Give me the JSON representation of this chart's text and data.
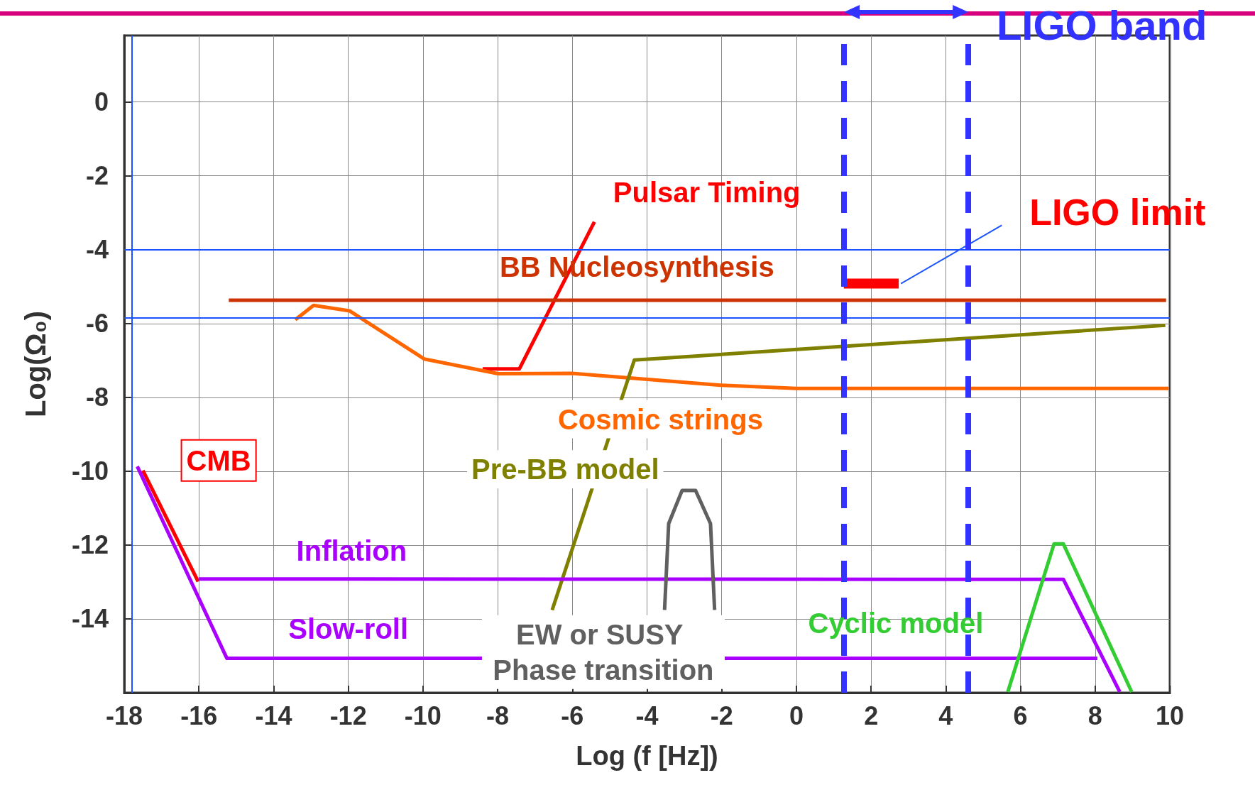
{
  "chart_data": {
    "type": "line",
    "xlabel": "Log (f [Hz])",
    "ylabel": "Log(Ω₀)",
    "xlim": [
      -18,
      10
    ],
    "xticks": [
      -18,
      -16,
      -14,
      -12,
      -10,
      -8,
      -6,
      -4,
      -2,
      0,
      2,
      4,
      6,
      8,
      10
    ],
    "ylim": [
      -16,
      1.8
    ],
    "yticks": [
      -14,
      -12,
      -10,
      -8,
      -6,
      -4,
      -2,
      0
    ],
    "grid": true,
    "legend": false,
    "marker": "none",
    "line_style": "solid",
    "series": [
      {
        "name": "Pulsar Timing",
        "color": "#ff0000",
        "x": [
          -8.4,
          -7.42,
          -5.41
        ],
        "values": [
          -7.23,
          -7.23,
          -3.25
        ]
      },
      {
        "name": "BB Nucleosynthesis",
        "color": "#cc3300",
        "x": [
          -15.2,
          9.9
        ],
        "values": [
          -5.37,
          -5.37
        ]
      },
      {
        "name": "LIGO limit",
        "color": "#ff0000",
        "x": [
          1.27,
          2.74
        ],
        "values": [
          -4.92,
          -4.92
        ]
      },
      {
        "name": "Cosmic strings",
        "color": "#ff6600",
        "x": [
          -13.42,
          -12.93,
          -11.96,
          -9.97,
          -7.99,
          -6.01,
          -2.03,
          0,
          9.97
        ],
        "values": [
          -5.9,
          -5.51,
          -5.66,
          -6.96,
          -7.36,
          -7.35,
          -7.67,
          -7.76,
          -7.76
        ]
      },
      {
        "name": "Pre-BB model",
        "color": "#808000",
        "x": [
          -6.54,
          -4.34,
          9.88
        ],
        "values": [
          -13.76,
          -6.99,
          -6.05
        ]
      },
      {
        "name": "CMB",
        "color": "#ff0000",
        "x": [
          -17.5,
          -16.02
        ],
        "values": [
          -9.98,
          -12.99
        ]
      },
      {
        "name": "Inflation",
        "color": "#aa00ff",
        "x": [
          -16,
          7.15,
          8.66
        ],
        "values": [
          -12.92,
          -12.93,
          -15.98
        ]
      },
      {
        "name": "Slow-roll",
        "color": "#aa00ff",
        "x": [
          -17.65,
          -15.25,
          8.06
        ],
        "values": [
          -9.87,
          -15.07,
          -15.07
        ]
      },
      {
        "name": "EW or SUSY Phase transition",
        "color": "#606060",
        "x": [
          -3.53,
          -3.42,
          -3.06,
          -2.7,
          -2.3,
          -2.19
        ],
        "values": [
          -13.76,
          -11.42,
          -10.52,
          -10.52,
          -11.42,
          -13.76
        ]
      },
      {
        "name": "Cyclic model",
        "color": "#33cc33",
        "x": [
          5.66,
          6.9,
          7.15,
          8.98
        ],
        "values": [
          -15.98,
          -11.97,
          -11.97,
          -15.98
        ]
      }
    ],
    "ref_lines": [
      {
        "axis": "y",
        "value": -4,
        "color": "#1a53ff"
      },
      {
        "axis": "y",
        "value": -5.84,
        "color": "#1a53ff"
      },
      {
        "axis": "x",
        "value": -17.8,
        "color": "#1a53ff"
      },
      {
        "axis": "x",
        "value": 1.27,
        "color": "#3333ff",
        "line_style": "dashed"
      },
      {
        "axis": "x",
        "value": 4.6,
        "color": "#3333ff",
        "line_style": "dashed"
      }
    ],
    "annotations": [
      "LIGO band"
    ]
  }
}
